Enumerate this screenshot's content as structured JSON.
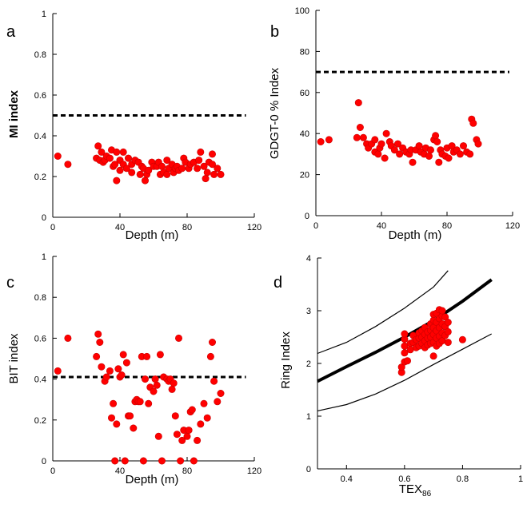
{
  "chart_data": [
    {
      "id": "a",
      "panel_label": "a",
      "type": "scatter",
      "xlabel": "Depth (m)",
      "ylabel": "MI index",
      "ylabel_bold": true,
      "xlim": [
        0,
        120
      ],
      "ylim": [
        0,
        1
      ],
      "xticks": [
        0,
        40,
        80,
        120
      ],
      "yticks": [
        0,
        0.2,
        0.4,
        0.6,
        0.8,
        1
      ],
      "ytick_labels": [
        "0",
        "0.2",
        "0.4",
        "0.6",
        "0.8",
        "1"
      ],
      "grid": false,
      "marker_color": "#ff0000",
      "reference_line": {
        "y": 0.5,
        "x_range": [
          0,
          115
        ],
        "style": "dashed"
      },
      "points": [
        [
          3,
          0.3
        ],
        [
          9,
          0.26
        ],
        [
          26,
          0.29
        ],
        [
          27,
          0.35
        ],
        [
          28,
          0.28
        ],
        [
          29,
          0.32
        ],
        [
          30,
          0.27
        ],
        [
          31,
          0.28
        ],
        [
          32,
          0.3
        ],
        [
          34,
          0.29
        ],
        [
          35,
          0.33
        ],
        [
          36,
          0.25
        ],
        [
          37,
          0.26
        ],
        [
          38,
          0.18
        ],
        [
          38,
          0.32
        ],
        [
          40,
          0.28
        ],
        [
          40,
          0.23
        ],
        [
          42,
          0.26
        ],
        [
          42,
          0.32
        ],
        [
          44,
          0.24
        ],
        [
          45,
          0.29
        ],
        [
          47,
          0.26
        ],
        [
          47,
          0.22
        ],
        [
          49,
          0.28
        ],
        [
          51,
          0.27
        ],
        [
          52,
          0.21
        ],
        [
          53,
          0.25
        ],
        [
          54,
          0.24
        ],
        [
          55,
          0.18
        ],
        [
          56,
          0.21
        ],
        [
          57,
          0.23
        ],
        [
          59,
          0.27
        ],
        [
          60,
          0.25
        ],
        [
          62,
          0.25
        ],
        [
          63,
          0.27
        ],
        [
          64,
          0.21
        ],
        [
          65,
          0.25
        ],
        [
          66,
          0.22
        ],
        [
          68,
          0.21
        ],
        [
          68,
          0.28
        ],
        [
          69,
          0.24
        ],
        [
          71,
          0.26
        ],
        [
          72,
          0.22
        ],
        [
          73,
          0.24
        ],
        [
          74,
          0.25
        ],
        [
          75,
          0.23
        ],
        [
          77,
          0.24
        ],
        [
          78,
          0.29
        ],
        [
          79,
          0.27
        ],
        [
          81,
          0.24
        ],
        [
          82,
          0.26
        ],
        [
          84,
          0.27
        ],
        [
          86,
          0.24
        ],
        [
          87,
          0.28
        ],
        [
          88,
          0.32
        ],
        [
          90,
          0.25
        ],
        [
          91,
          0.19
        ],
        [
          92,
          0.22
        ],
        [
          93,
          0.27
        ],
        [
          95,
          0.31
        ],
        [
          95,
          0.26
        ],
        [
          96,
          0.21
        ],
        [
          98,
          0.24
        ],
        [
          100,
          0.21
        ]
      ]
    },
    {
      "id": "b",
      "panel_label": "b",
      "type": "scatter",
      "xlabel": "Depth (m)",
      "ylabel": "GDGT-0 % Index",
      "ylabel_bold": false,
      "xlim": [
        0,
        120
      ],
      "ylim": [
        0,
        100
      ],
      "xticks": [
        0,
        40,
        80,
        120
      ],
      "yticks": [
        0,
        20,
        40,
        60,
        80,
        100
      ],
      "ytick_labels": [
        "0",
        "20",
        "40",
        "60",
        "80",
        "100"
      ],
      "grid": false,
      "marker_color": "#ff0000",
      "reference_line": {
        "y": 70,
        "x_range": [
          0,
          118
        ],
        "style": "dashed"
      },
      "points": [
        [
          3,
          36
        ],
        [
          8,
          37
        ],
        [
          25,
          38
        ],
        [
          26,
          55
        ],
        [
          27,
          43
        ],
        [
          29,
          38
        ],
        [
          31,
          35
        ],
        [
          32,
          33
        ],
        [
          34,
          35
        ],
        [
          36,
          37
        ],
        [
          36,
          31
        ],
        [
          38,
          30
        ],
        [
          39,
          33
        ],
        [
          40,
          35
        ],
        [
          42,
          28
        ],
        [
          43,
          40
        ],
        [
          45,
          36
        ],
        [
          46,
          34
        ],
        [
          48,
          32
        ],
        [
          50,
          35
        ],
        [
          51,
          30
        ],
        [
          53,
          33
        ],
        [
          55,
          31
        ],
        [
          57,
          30
        ],
        [
          58,
          32
        ],
        [
          59,
          26
        ],
        [
          61,
          32
        ],
        [
          63,
          34
        ],
        [
          64,
          31
        ],
        [
          66,
          30
        ],
        [
          67,
          33
        ],
        [
          69,
          29
        ],
        [
          70,
          32
        ],
        [
          72,
          37
        ],
        [
          73,
          39
        ],
        [
          74,
          36
        ],
        [
          75,
          26
        ],
        [
          76,
          32
        ],
        [
          77,
          30
        ],
        [
          79,
          29
        ],
        [
          80,
          33
        ],
        [
          81,
          28
        ],
        [
          83,
          34
        ],
        [
          84,
          31
        ],
        [
          86,
          32
        ],
        [
          88,
          30
        ],
        [
          90,
          34
        ],
        [
          92,
          31
        ],
        [
          94,
          30
        ],
        [
          95,
          47
        ],
        [
          96,
          45
        ],
        [
          98,
          37
        ],
        [
          99,
          35
        ]
      ]
    },
    {
      "id": "c",
      "panel_label": "c",
      "type": "scatter",
      "xlabel": "Depth (m)",
      "ylabel": "BIT index",
      "ylabel_bold": false,
      "xlim": [
        0,
        120
      ],
      "ylim": [
        0,
        1
      ],
      "xticks": [
        0,
        40,
        80,
        120
      ],
      "yticks": [
        0,
        0.2,
        0.4,
        0.6,
        0.8,
        1
      ],
      "ytick_labels": [
        "0",
        "0.2",
        "0.4",
        "0.6",
        "0.8",
        "1"
      ],
      "grid": false,
      "marker_color": "#ff0000",
      "reference_line": {
        "y": 0.41,
        "x_range": [
          0,
          115
        ],
        "style": "dashed"
      },
      "points": [
        [
          3,
          0.44
        ],
        [
          9,
          0.6
        ],
        [
          26,
          0.51
        ],
        [
          27,
          0.62
        ],
        [
          28,
          0.58
        ],
        [
          29,
          0.46
        ],
        [
          31,
          0.39
        ],
        [
          32,
          0.41
        ],
        [
          34,
          0.44
        ],
        [
          35,
          0.21
        ],
        [
          36,
          0.28
        ],
        [
          37,
          0.0
        ],
        [
          38,
          0.18
        ],
        [
          39,
          0.45
        ],
        [
          40,
          0.41
        ],
        [
          41,
          0.42
        ],
        [
          42,
          0.52
        ],
        [
          43,
          0.0
        ],
        [
          44,
          0.48
        ],
        [
          45,
          0.22
        ],
        [
          46,
          0.22
        ],
        [
          48,
          0.16
        ],
        [
          49,
          0.29
        ],
        [
          50,
          0.3
        ],
        [
          51,
          0.29
        ],
        [
          52,
          0.29
        ],
        [
          53,
          0.51
        ],
        [
          54,
          0.0
        ],
        [
          55,
          0.4
        ],
        [
          56,
          0.51
        ],
        [
          57,
          0.28
        ],
        [
          58,
          0.36
        ],
        [
          60,
          0.34
        ],
        [
          61,
          0.4
        ],
        [
          62,
          0.37
        ],
        [
          63,
          0.12
        ],
        [
          64,
          0.52
        ],
        [
          65,
          0.0
        ],
        [
          66,
          0.41
        ],
        [
          68,
          0.4
        ],
        [
          69,
          0.39
        ],
        [
          70,
          0.4
        ],
        [
          71,
          0.35
        ],
        [
          72,
          0.38
        ],
        [
          73,
          0.22
        ],
        [
          74,
          0.13
        ],
        [
          75,
          0.6
        ],
        [
          76,
          0.0
        ],
        [
          77,
          0.1
        ],
        [
          78,
          0.15
        ],
        [
          80,
          0.12
        ],
        [
          81,
          0.15
        ],
        [
          82,
          0.24
        ],
        [
          83,
          0.25
        ],
        [
          84,
          0.0
        ],
        [
          86,
          0.1
        ],
        [
          88,
          0.18
        ],
        [
          90,
          0.28
        ],
        [
          92,
          0.21
        ],
        [
          94,
          0.51
        ],
        [
          95,
          0.58
        ],
        [
          96,
          0.39
        ],
        [
          98,
          0.29
        ],
        [
          100,
          0.33
        ]
      ]
    },
    {
      "id": "d",
      "panel_label": "d",
      "type": "scatter",
      "xlabel": "TEX",
      "xlabel_subscript": "86",
      "ylabel": "Ring Index",
      "ylabel_bold": false,
      "xlim": [
        0.3,
        1
      ],
      "ylim": [
        0,
        4
      ],
      "xticks": [
        0.4,
        0.6,
        0.8,
        1
      ],
      "xtick_labels": [
        "0.4",
        "0.6",
        "0.8",
        "1"
      ],
      "yticks": [
        0,
        1,
        2,
        3,
        4
      ],
      "ytick_labels": [
        "0",
        "1",
        "2",
        "3",
        "4"
      ],
      "grid": false,
      "marker_color": "#ff0000",
      "curves": [
        {
          "name": "",
          "style": "thick",
          "points": [
            [
              0.3,
              1.66
            ],
            [
              0.4,
              1.94
            ],
            [
              0.5,
              2.21
            ],
            [
              0.6,
              2.5
            ],
            [
              0.7,
              2.81
            ],
            [
              0.8,
              3.18
            ],
            [
              0.9,
              3.59
            ]
          ]
        },
        {
          "name": "",
          "style": "thin",
          "points": [
            [
              0.3,
              2.19
            ],
            [
              0.4,
              2.4
            ],
            [
              0.5,
              2.7
            ],
            [
              0.6,
              3.05
            ],
            [
              0.7,
              3.45
            ],
            [
              0.75,
              3.76
            ]
          ]
        },
        {
          "name": "",
          "style": "thin",
          "points": [
            [
              0.3,
              1.1
            ],
            [
              0.4,
              1.22
            ],
            [
              0.5,
              1.42
            ],
            [
              0.6,
              1.68
            ],
            [
              0.7,
              1.98
            ],
            [
              0.8,
              2.27
            ],
            [
              0.9,
              2.56
            ]
          ]
        }
      ],
      "points": [
        [
          0.59,
          1.83
        ],
        [
          0.59,
          1.93
        ],
        [
          0.6,
          2.03
        ],
        [
          0.6,
          2.2
        ],
        [
          0.6,
          2.33
        ],
        [
          0.6,
          2.46
        ],
        [
          0.6,
          2.56
        ],
        [
          0.61,
          2.05
        ],
        [
          0.62,
          2.38
        ],
        [
          0.62,
          2.26
        ],
        [
          0.63,
          2.4
        ],
        [
          0.63,
          2.53
        ],
        [
          0.64,
          2.3
        ],
        [
          0.64,
          2.45
        ],
        [
          0.65,
          2.33
        ],
        [
          0.65,
          2.48
        ],
        [
          0.65,
          2.58
        ],
        [
          0.66,
          2.38
        ],
        [
          0.66,
          2.5
        ],
        [
          0.66,
          2.62
        ],
        [
          0.67,
          2.3
        ],
        [
          0.67,
          2.43
        ],
        [
          0.67,
          2.55
        ],
        [
          0.67,
          2.68
        ],
        [
          0.68,
          2.35
        ],
        [
          0.68,
          2.48
        ],
        [
          0.68,
          2.6
        ],
        [
          0.69,
          2.38
        ],
        [
          0.69,
          2.5
        ],
        [
          0.69,
          2.63
        ],
        [
          0.69,
          2.75
        ],
        [
          0.7,
          2.14
        ],
        [
          0.7,
          2.4
        ],
        [
          0.7,
          2.55
        ],
        [
          0.7,
          2.68
        ],
        [
          0.7,
          2.82
        ],
        [
          0.7,
          2.93
        ],
        [
          0.71,
          2.33
        ],
        [
          0.71,
          2.48
        ],
        [
          0.71,
          2.62
        ],
        [
          0.71,
          2.78
        ],
        [
          0.71,
          2.95
        ],
        [
          0.72,
          2.38
        ],
        [
          0.72,
          2.52
        ],
        [
          0.72,
          2.68
        ],
        [
          0.72,
          2.85
        ],
        [
          0.72,
          3.02
        ],
        [
          0.73,
          2.43
        ],
        [
          0.73,
          2.58
        ],
        [
          0.73,
          2.75
        ],
        [
          0.73,
          2.9
        ],
        [
          0.73,
          3.0
        ],
        [
          0.74,
          2.53
        ],
        [
          0.74,
          2.7
        ],
        [
          0.74,
          2.88
        ],
        [
          0.75,
          2.6
        ],
        [
          0.75,
          2.78
        ],
        [
          0.75,
          2.4
        ],
        [
          0.8,
          2.45
        ]
      ]
    }
  ]
}
